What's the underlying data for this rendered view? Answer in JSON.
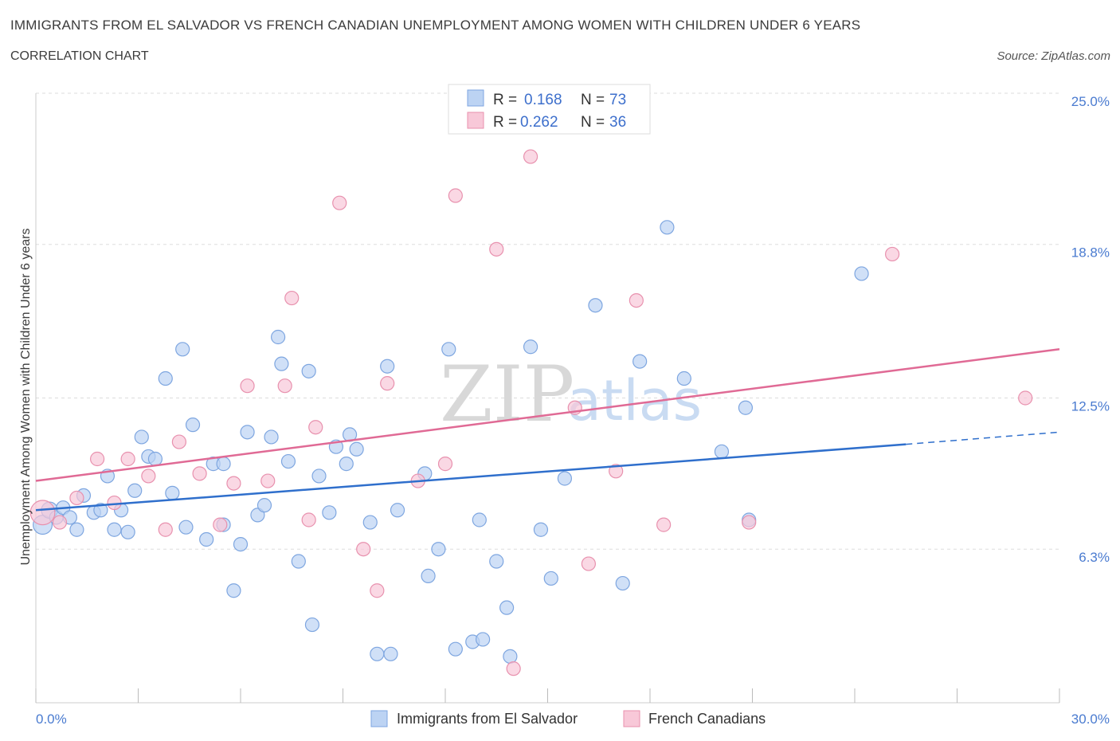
{
  "header": {
    "title": "IMMIGRANTS FROM EL SALVADOR VS FRENCH CANADIAN UNEMPLOYMENT AMONG WOMEN WITH CHILDREN UNDER 6 YEARS",
    "subtitle": "CORRELATION CHART",
    "source": "Source: ZipAtlas.com"
  },
  "watermark": {
    "zip": "ZIP",
    "atlas": "atlas"
  },
  "legend": {
    "rows": [
      {
        "r_label": "R =",
        "r_value": "0.168",
        "n_label": "N =",
        "n_value": "73"
      },
      {
        "r_label": "R =",
        "r_value": "0.262",
        "n_label": "N =",
        "n_value": "36"
      }
    ]
  },
  "colors": {
    "blue_fill": "#bcd3f3",
    "blue_stroke": "#7ea6e0",
    "blue_line": "#2f6fcc",
    "pink_fill": "#f8c8d8",
    "pink_stroke": "#e891ae",
    "pink_line": "#e06a95",
    "grid": "#dddddd",
    "axis_label": "#4a7bd0"
  },
  "chart_data": {
    "type": "scatter",
    "title": "IMMIGRANTS FROM EL SALVADOR VS FRENCH CANADIAN UNEMPLOYMENT AMONG WOMEN WITH CHILDREN UNDER 6 YEARS",
    "xlabel": "",
    "ylabel": "Unemployment Among Women with Children Under 6 years",
    "xlim": [
      0,
      30
    ],
    "ylim": [
      0,
      25
    ],
    "x_tick_labels": [
      "0.0%",
      "30.0%"
    ],
    "y_ticks": [
      6.3,
      12.5,
      18.8,
      25.0
    ],
    "y_tick_labels": [
      "6.3%",
      "12.5%",
      "18.8%",
      "25.0%"
    ],
    "grid": true,
    "legend_position": "bottom-center",
    "series": [
      {
        "name": "Immigrants from El Salvador",
        "r": 0.168,
        "n": 73,
        "trend": {
          "x": [
            0,
            25.5
          ],
          "y": [
            7.9,
            10.6
          ]
        },
        "trend_dashed": {
          "x": [
            25.5,
            30
          ],
          "y": [
            10.6,
            11.1
          ]
        },
        "points": [
          [
            0.2,
            7.3,
            1.4
          ],
          [
            0.4,
            7.9,
            1.2
          ],
          [
            0.6,
            7.6,
            1
          ],
          [
            0.8,
            8.0,
            1
          ],
          [
            1.0,
            7.6,
            1
          ],
          [
            1.2,
            7.1,
            1
          ],
          [
            1.4,
            8.5,
            1
          ],
          [
            1.7,
            7.8,
            1
          ],
          [
            1.9,
            7.9,
            1
          ],
          [
            2.1,
            9.3,
            1
          ],
          [
            2.3,
            7.1,
            1
          ],
          [
            2.5,
            7.9,
            1
          ],
          [
            2.7,
            7.0,
            1
          ],
          [
            2.9,
            8.7,
            1
          ],
          [
            3.1,
            10.9,
            1
          ],
          [
            3.3,
            10.1,
            1
          ],
          [
            3.5,
            10.0,
            1
          ],
          [
            3.8,
            13.3,
            1
          ],
          [
            4.0,
            8.6,
            1
          ],
          [
            4.3,
            14.5,
            1
          ],
          [
            4.4,
            7.2,
            1
          ],
          [
            4.6,
            11.4,
            1
          ],
          [
            5.0,
            6.7,
            1
          ],
          [
            5.2,
            9.8,
            1
          ],
          [
            5.5,
            7.3,
            1
          ],
          [
            5.5,
            9.8,
            1
          ],
          [
            5.8,
            4.6,
            1
          ],
          [
            6.0,
            6.5,
            1
          ],
          [
            6.2,
            11.1,
            1
          ],
          [
            6.5,
            7.7,
            1
          ],
          [
            6.7,
            8.1,
            1
          ],
          [
            6.9,
            10.9,
            1
          ],
          [
            7.1,
            15.0,
            1
          ],
          [
            7.2,
            13.9,
            1
          ],
          [
            7.4,
            9.9,
            1
          ],
          [
            7.7,
            5.8,
            1
          ],
          [
            8.0,
            13.6,
            1
          ],
          [
            8.1,
            3.2,
            1
          ],
          [
            8.3,
            9.3,
            1
          ],
          [
            8.6,
            7.8,
            1
          ],
          [
            8.8,
            10.5,
            1
          ],
          [
            9.1,
            9.8,
            1
          ],
          [
            9.2,
            11.0,
            1
          ],
          [
            9.4,
            10.4,
            1
          ],
          [
            9.8,
            7.4,
            1
          ],
          [
            10.0,
            2.0,
            1
          ],
          [
            10.3,
            13.8,
            1
          ],
          [
            10.4,
            2.0,
            1
          ],
          [
            10.6,
            7.9,
            1
          ],
          [
            11.4,
            9.4,
            1
          ],
          [
            11.5,
            5.2,
            1
          ],
          [
            11.8,
            6.3,
            1
          ],
          [
            12.1,
            14.5,
            1
          ],
          [
            12.3,
            2.2,
            1
          ],
          [
            12.8,
            2.5,
            1
          ],
          [
            13.0,
            7.5,
            1
          ],
          [
            13.1,
            2.6,
            1
          ],
          [
            13.5,
            5.8,
            1
          ],
          [
            13.8,
            3.9,
            1
          ],
          [
            13.9,
            1.9,
            1
          ],
          [
            14.5,
            14.6,
            1
          ],
          [
            14.8,
            7.1,
            1
          ],
          [
            15.1,
            5.1,
            1
          ],
          [
            15.5,
            9.2,
            1
          ],
          [
            16.4,
            16.3,
            1
          ],
          [
            17.2,
            4.9,
            1
          ],
          [
            17.7,
            14.0,
            1
          ],
          [
            18.5,
            19.5,
            1
          ],
          [
            19.0,
            13.3,
            1
          ],
          [
            20.1,
            10.3,
            1
          ],
          [
            20.8,
            12.1,
            1
          ],
          [
            20.9,
            7.5,
            1
          ],
          [
            24.2,
            17.6,
            1
          ]
        ]
      },
      {
        "name": "French Canadians",
        "r": 0.262,
        "n": 36,
        "trend": {
          "x": [
            0,
            30
          ],
          "y": [
            9.1,
            14.5
          ]
        },
        "points": [
          [
            0.2,
            7.8,
            1.8
          ],
          [
            0.7,
            7.4,
            1
          ],
          [
            1.2,
            8.4,
            1
          ],
          [
            1.8,
            10.0,
            1
          ],
          [
            2.3,
            8.2,
            1
          ],
          [
            2.7,
            10.0,
            1
          ],
          [
            3.3,
            9.3,
            1
          ],
          [
            3.8,
            7.1,
            1
          ],
          [
            4.2,
            10.7,
            1
          ],
          [
            4.8,
            9.4,
            1
          ],
          [
            5.4,
            7.3,
            1
          ],
          [
            5.8,
            9.0,
            1
          ],
          [
            6.2,
            13.0,
            1
          ],
          [
            6.8,
            9.1,
            1
          ],
          [
            7.3,
            13.0,
            1
          ],
          [
            7.5,
            16.6,
            1
          ],
          [
            8.0,
            7.5,
            1
          ],
          [
            8.2,
            11.3,
            1
          ],
          [
            8.9,
            20.5,
            1
          ],
          [
            9.6,
            6.3,
            1
          ],
          [
            10.0,
            4.6,
            1
          ],
          [
            10.3,
            13.1,
            1
          ],
          [
            11.2,
            9.1,
            1
          ],
          [
            12.0,
            9.8,
            1
          ],
          [
            12.3,
            20.8,
            1
          ],
          [
            13.5,
            18.6,
            1
          ],
          [
            14.0,
            1.4,
            1
          ],
          [
            14.5,
            22.4,
            1
          ],
          [
            15.8,
            12.1,
            1
          ],
          [
            16.2,
            5.7,
            1
          ],
          [
            17.0,
            9.5,
            1
          ],
          [
            17.6,
            16.5,
            1
          ],
          [
            18.4,
            7.3,
            1
          ],
          [
            20.9,
            7.4,
            1
          ],
          [
            25.1,
            18.4,
            1
          ],
          [
            29.0,
            12.5,
            1
          ]
        ]
      }
    ]
  },
  "bottom_legend": {
    "items": [
      {
        "label": "Immigrants from El Salvador"
      },
      {
        "label": "French Canadians"
      }
    ]
  }
}
